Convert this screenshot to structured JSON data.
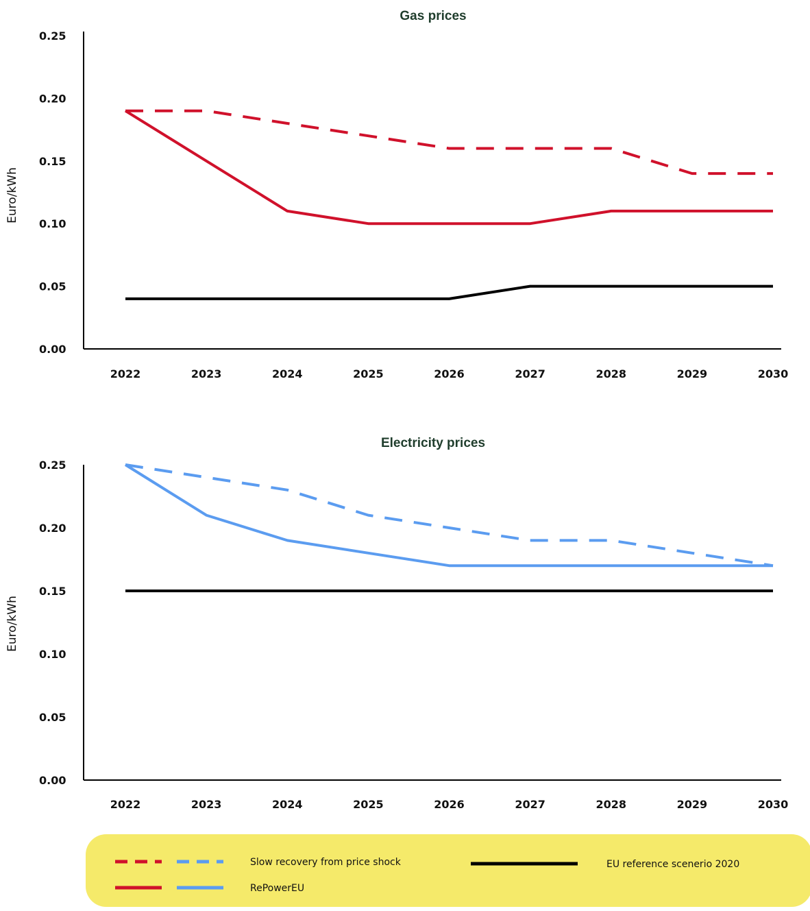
{
  "chart_data": [
    {
      "type": "line",
      "title": "Gas prices",
      "ylabel": "Euro/kWh",
      "xlabel": "",
      "ylim": [
        0,
        0.25
      ],
      "yticks": [
        "0.00",
        "0.05",
        "0.10",
        "0.15",
        "0.20",
        "0.25"
      ],
      "categories": [
        "2022",
        "2023",
        "2024",
        "2025",
        "2026",
        "2027",
        "2028",
        "2029",
        "2030"
      ],
      "series": [
        {
          "key": "slow",
          "color": "#d0112b",
          "dashed": true,
          "values": [
            0.19,
            0.19,
            0.18,
            0.17,
            0.16,
            0.16,
            0.16,
            0.14,
            0.14
          ]
        },
        {
          "key": "repower",
          "color": "#d0112b",
          "dashed": false,
          "values": [
            0.19,
            0.15,
            0.11,
            0.1,
            0.1,
            0.1,
            0.11,
            0.11,
            0.11
          ]
        },
        {
          "key": "ref",
          "color": "#000000",
          "dashed": false,
          "values": [
            0.04,
            0.04,
            0.04,
            0.04,
            0.04,
            0.05,
            0.05,
            0.05,
            0.05
          ]
        }
      ]
    },
    {
      "type": "line",
      "title": "Electricity prices",
      "ylabel": "Euro/kWh",
      "xlabel": "",
      "ylim": [
        0,
        0.25
      ],
      "yticks": [
        "0.00",
        "0.05",
        "0.10",
        "0.15",
        "0.20",
        "0.25"
      ],
      "categories": [
        "2022",
        "2023",
        "2024",
        "2025",
        "2026",
        "2027",
        "2028",
        "2029",
        "2030"
      ],
      "series": [
        {
          "key": "slow",
          "color": "#5b9cf0",
          "dashed": true,
          "values": [
            0.25,
            0.24,
            0.23,
            0.21,
            0.2,
            0.19,
            0.19,
            0.18,
            0.17
          ]
        },
        {
          "key": "repower",
          "color": "#5b9cf0",
          "dashed": false,
          "values": [
            0.25,
            0.21,
            0.19,
            0.18,
            0.17,
            0.17,
            0.17,
            0.17,
            0.17
          ]
        },
        {
          "key": "ref",
          "color": "#000000",
          "dashed": false,
          "values": [
            0.15,
            0.15,
            0.15,
            0.15,
            0.15,
            0.15,
            0.15,
            0.15,
            0.15
          ]
        }
      ]
    }
  ],
  "legend": {
    "background": "#f5ea6a",
    "slow_label": "Slow recovery from price shock",
    "repower_label": "RePowerEU",
    "ref_label": "EU reference scenerio 2020"
  }
}
